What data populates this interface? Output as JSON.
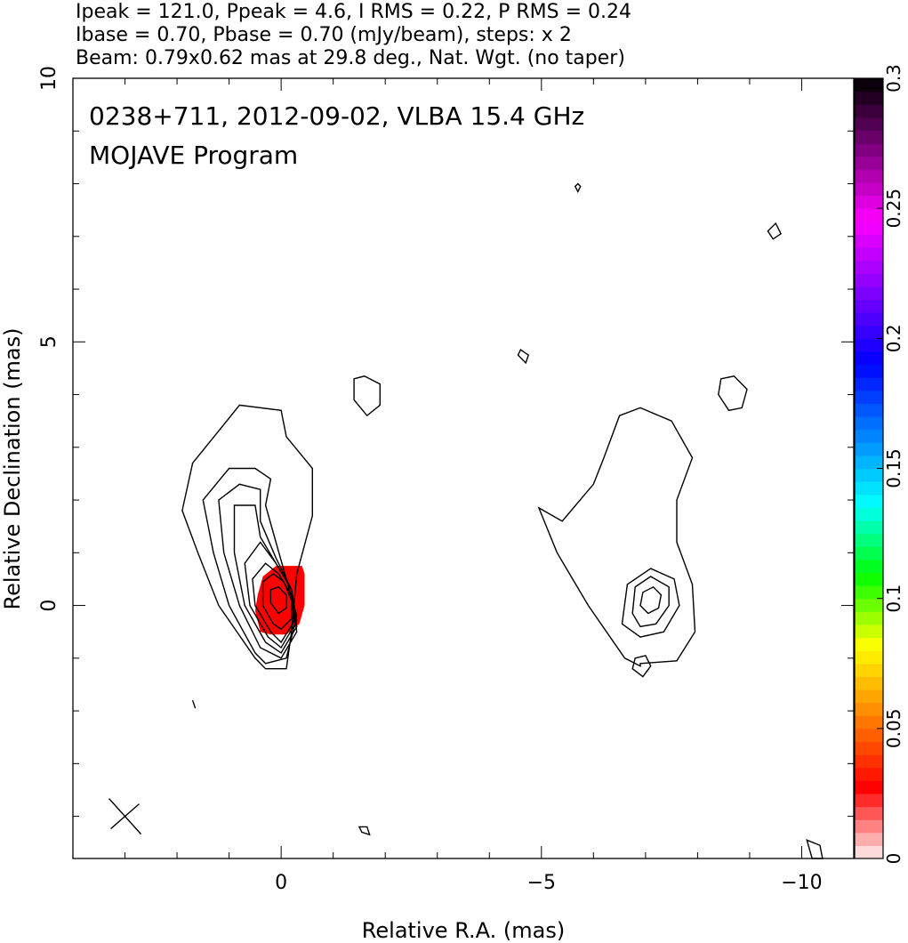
{
  "header": {
    "line1": "Ipeak = 121.0, Ppeak = 4.6, I RMS = 0.22, P RMS = 0.24",
    "line2": "Ibase = 0.70, Pbase = 0.70 (mJy/beam), steps: x 2",
    "line3": "Beam: 0.79x0.62 mas at 29.8 deg., Nat. Wgt. (no taper)"
  },
  "chart_data": {
    "type": "contour",
    "title": "0238+711, 2012-09-02, VLBA 15.4 GHz",
    "subtitle": "MOJAVE Program",
    "xlabel": "Relative R.A. (mas)",
    "ylabel": "Relative Declination (mas)",
    "xlim": [
      4,
      -11
    ],
    "ylim": [
      -4.8,
      10
    ],
    "xticks": [
      0,
      -5,
      -10
    ],
    "xtick_labels": [
      "0",
      "−5",
      "−10"
    ],
    "yticks": [
      0,
      5,
      10
    ],
    "ytick_labels": [
      "0",
      "5",
      "10"
    ],
    "ra_offset_second_panel": -7,
    "beam": {
      "major": 0.79,
      "minor": 0.62,
      "pa_deg": 29.8
    },
    "left_panel_contours": [
      {
        "cx": 0.07,
        "cy": -0.05,
        "rx": 0.55,
        "ry": 0.95,
        "angle": 20,
        "points": [
          [
            0.5,
            -1.0
          ],
          [
            1.2,
            0.0
          ],
          [
            1.6,
            1.0
          ],
          [
            1.9,
            1.8
          ],
          [
            1.7,
            2.7
          ],
          [
            0.8,
            3.8
          ],
          [
            0.0,
            3.7
          ],
          [
            -0.1,
            3.2
          ],
          [
            -0.6,
            2.6
          ],
          [
            -0.6,
            1.7
          ],
          [
            -0.3,
            0.6
          ],
          [
            -0.2,
            -0.5
          ],
          [
            -0.1,
            -1.2
          ],
          [
            0.3,
            -1.2
          ]
        ]
      },
      {
        "points": [
          [
            0.5,
            -0.9
          ],
          [
            1.0,
            0.0
          ],
          [
            1.3,
            1.0
          ],
          [
            1.5,
            2.0
          ],
          [
            1.0,
            2.6
          ],
          [
            0.5,
            2.6
          ],
          [
            0.2,
            2.4
          ],
          [
            0.3,
            1.9
          ],
          [
            0.1,
            1.2
          ],
          [
            -0.1,
            0.5
          ],
          [
            -0.3,
            -0.2
          ],
          [
            -0.1,
            -1.0
          ],
          [
            0.3,
            -1.1
          ]
        ]
      },
      {
        "points": [
          [
            0.4,
            -0.8
          ],
          [
            0.8,
            0.0
          ],
          [
            1.1,
            1.0
          ],
          [
            1.2,
            2.0
          ],
          [
            0.8,
            2.3
          ],
          [
            0.4,
            2.2
          ],
          [
            0.4,
            1.6
          ],
          [
            0.1,
            0.9
          ],
          [
            -0.2,
            0.3
          ],
          [
            -0.3,
            -0.5
          ],
          [
            0.0,
            -1.0
          ]
        ]
      },
      {
        "points": [
          [
            0.3,
            -0.7
          ],
          [
            0.7,
            0.0
          ],
          [
            0.9,
            1.0
          ],
          [
            0.9,
            1.9
          ],
          [
            0.5,
            1.9
          ],
          [
            0.4,
            1.3
          ],
          [
            0.1,
            0.8
          ],
          [
            -0.2,
            0.3
          ],
          [
            -0.3,
            -0.4
          ],
          [
            0.0,
            -0.9
          ]
        ]
      },
      {
        "points": [
          [
            0.25,
            -0.6
          ],
          [
            0.6,
            0.0
          ],
          [
            0.7,
            0.8
          ],
          [
            0.4,
            1.2
          ],
          [
            0.1,
            0.8
          ],
          [
            -0.2,
            0.3
          ],
          [
            -0.3,
            -0.3
          ],
          [
            0.0,
            -0.8
          ]
        ]
      },
      {
        "points": [
          [
            0.2,
            -0.5
          ],
          [
            0.5,
            0.0
          ],
          [
            0.55,
            0.5
          ],
          [
            0.3,
            0.8
          ],
          [
            0.05,
            0.6
          ],
          [
            -0.2,
            0.2
          ],
          [
            -0.25,
            -0.3
          ],
          [
            0.0,
            -0.7
          ]
        ]
      },
      {
        "points": [
          [
            0.15,
            -0.35
          ],
          [
            0.35,
            0.0
          ],
          [
            0.35,
            0.45
          ],
          [
            0.15,
            0.6
          ],
          [
            -0.05,
            0.45
          ],
          [
            -0.2,
            0.1
          ],
          [
            -0.2,
            -0.25
          ],
          [
            0.0,
            -0.45
          ]
        ]
      },
      {
        "points": [
          [
            0.05,
            -0.15
          ],
          [
            0.2,
            0.05
          ],
          [
            0.2,
            0.3
          ],
          [
            0.05,
            0.35
          ],
          [
            -0.1,
            0.2
          ],
          [
            -0.1,
            -0.05
          ]
        ]
      }
    ],
    "island_contours": [
      {
        "points": [
          [
            -1.4,
            3.9
          ],
          [
            -1.4,
            4.3
          ],
          [
            -1.6,
            4.35
          ],
          [
            -1.9,
            4.2
          ],
          [
            -1.9,
            3.8
          ],
          [
            -1.65,
            3.6
          ]
        ]
      },
      {
        "points": [
          [
            -4.55,
            4.75
          ],
          [
            -4.6,
            4.85
          ],
          [
            -4.75,
            4.75
          ],
          [
            -4.7,
            4.6
          ]
        ]
      },
      {
        "points": [
          [
            -5.7,
            8.0
          ],
          [
            -5.75,
            7.95
          ],
          [
            -5.7,
            7.85
          ],
          [
            -5.65,
            7.95
          ]
        ]
      },
      {
        "points": [
          [
            -9.35,
            7.1
          ],
          [
            -9.5,
            7.25
          ],
          [
            -9.6,
            7.05
          ],
          [
            -9.45,
            6.95
          ]
        ]
      },
      {
        "points": [
          [
            -1.5,
            -4.2
          ],
          [
            -1.55,
            -4.3
          ],
          [
            -1.7,
            -4.35
          ],
          [
            -1.65,
            -4.2
          ]
        ]
      },
      {
        "points": [
          [
            1.7,
            -1.8
          ],
          [
            1.65,
            -1.95
          ]
        ]
      },
      {
        "points": [
          [
            -10.1,
            -4.45
          ],
          [
            -10.35,
            -4.55
          ],
          [
            -10.4,
            -4.8
          ],
          [
            -10.2,
            -4.8
          ]
        ]
      },
      {
        "points": [
          [
            -8.4,
            4.0
          ],
          [
            -8.45,
            4.3
          ],
          [
            -8.7,
            4.35
          ],
          [
            -8.95,
            4.1
          ],
          [
            -8.85,
            3.75
          ],
          [
            -8.6,
            3.7
          ]
        ]
      }
    ],
    "right_panel_contours": [
      {
        "points": [
          [
            -6.9,
            -1.1
          ],
          [
            -7.6,
            -1.05
          ],
          [
            -7.95,
            -0.5
          ],
          [
            -7.9,
            0.4
          ],
          [
            -7.6,
            1.2
          ],
          [
            -7.6,
            2.0
          ],
          [
            -7.9,
            2.8
          ],
          [
            -7.5,
            3.5
          ],
          [
            -6.9,
            3.75
          ],
          [
            -6.5,
            3.6
          ],
          [
            -6.2,
            2.8
          ],
          [
            -6.0,
            2.3
          ],
          [
            -5.4,
            1.6
          ],
          [
            -4.95,
            1.85
          ],
          [
            -5.3,
            1.0
          ],
          [
            -5.9,
            0.0
          ],
          [
            -6.6,
            -1.0
          ],
          [
            -6.9,
            -1.15
          ]
        ]
      },
      {
        "points": [
          [
            -6.55,
            -0.35
          ],
          [
            -6.65,
            0.4
          ],
          [
            -7.1,
            0.7
          ],
          [
            -7.55,
            0.5
          ],
          [
            -7.65,
            0.0
          ],
          [
            -7.35,
            -0.5
          ],
          [
            -6.9,
            -0.6
          ]
        ]
      },
      {
        "points": [
          [
            -6.75,
            -0.15
          ],
          [
            -6.8,
            0.35
          ],
          [
            -7.1,
            0.55
          ],
          [
            -7.45,
            0.35
          ],
          [
            -7.45,
            0.0
          ],
          [
            -7.2,
            -0.35
          ],
          [
            -6.9,
            -0.4
          ]
        ]
      },
      {
        "points": [
          [
            -6.9,
            0.0
          ],
          [
            -6.95,
            0.25
          ],
          [
            -7.15,
            0.35
          ],
          [
            -7.3,
            0.2
          ],
          [
            -7.25,
            -0.05
          ],
          [
            -7.05,
            -0.15
          ]
        ]
      },
      {
        "points": [
          [
            -6.8,
            -1.0
          ],
          [
            -7.0,
            -0.95
          ],
          [
            -7.1,
            -1.15
          ],
          [
            -6.95,
            -1.35
          ],
          [
            -6.75,
            -1.2
          ]
        ]
      }
    ],
    "polarization_region": {
      "color": "#ff0000",
      "points": [
        [
          -0.45,
          0.6
        ],
        [
          -0.4,
          0.75
        ],
        [
          0.1,
          0.75
        ],
        [
          0.35,
          0.55
        ],
        [
          0.45,
          0.2
        ],
        [
          0.5,
          -0.1
        ],
        [
          0.4,
          -0.5
        ],
        [
          0.2,
          -0.55
        ],
        [
          -0.1,
          -0.55
        ],
        [
          -0.35,
          -0.35
        ],
        [
          -0.45,
          0.0
        ],
        [
          -0.45,
          0.4
        ]
      ]
    },
    "colorbar": {
      "label_ticks": [
        "0",
        "0.05",
        "0.1",
        "0.15",
        "0.2",
        "0.25",
        "0.3"
      ],
      "min": 0,
      "max": 0.3,
      "stops": [
        "#fff0f0",
        "#ff0000",
        "#ff8000",
        "#ffff00",
        "#00ff00",
        "#00ffff",
        "#0080ff",
        "#0000ff",
        "#8000ff",
        "#ff00ff",
        "#800080",
        "#000000"
      ]
    }
  }
}
